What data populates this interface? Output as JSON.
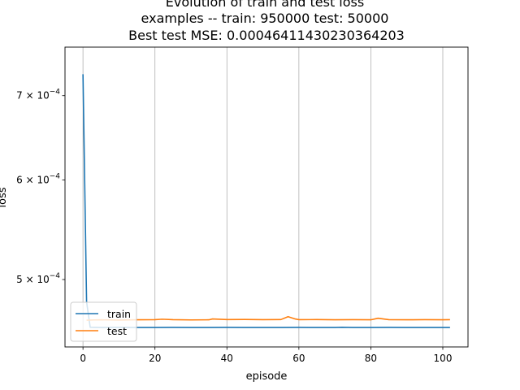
{
  "chart_data": {
    "type": "line",
    "title_lines": [
      "Evolution of train and test loss",
      "examples -- train: 950000 test: 50000",
      "Best test MSE: 0.00046411430230364203"
    ],
    "xlabel": "episode",
    "ylabel": "loss",
    "x_ticks": [
      0,
      20,
      40,
      60,
      80,
      100
    ],
    "y_scale": "log",
    "y_ticks": [
      {
        "value": 0.0005,
        "mantissa": "5",
        "base": "10",
        "exponent": "−4"
      },
      {
        "value": 0.0006,
        "mantissa": "6",
        "base": "10",
        "exponent": "−4"
      },
      {
        "value": 0.0007,
        "mantissa": "7",
        "base": "10",
        "exponent": "−4"
      }
    ],
    "xlim": [
      -5,
      107
    ],
    "ylim": [
      0.000442,
      0.000765
    ],
    "grid": "vertical lines at x ticks",
    "legend": {
      "placement": "lower-left"
    },
    "series": [
      {
        "name": "train",
        "color": "#1f77b4",
        "x": [
          0,
          1,
          2,
          5,
          10,
          15,
          20,
          25,
          30,
          35,
          40,
          45,
          50,
          55,
          60,
          65,
          70,
          72,
          75,
          80,
          85,
          90,
          95,
          100,
          102
        ],
        "y": [
          0.000728,
          0.00048,
          0.0004582,
          0.000458,
          0.0004581,
          0.000458,
          0.000458,
          0.0004581,
          0.000458,
          0.000458,
          0.0004581,
          0.000458,
          0.000458,
          0.000458,
          0.0004581,
          0.000458,
          0.000458,
          0.0004582,
          0.000458,
          0.000458,
          0.0004581,
          0.000458,
          0.000458,
          0.000458,
          0.000458
        ]
      },
      {
        "name": "test",
        "color": "#ff7f0e",
        "x": [
          1,
          3,
          5,
          10,
          15,
          20,
          22,
          25,
          30,
          35,
          36,
          40,
          45,
          50,
          55,
          57,
          59,
          60,
          65,
          70,
          75,
          80,
          82,
          85,
          90,
          95,
          100,
          102
        ],
        "y": [
          0.0004642,
          0.0004644,
          0.0004645,
          0.0004643,
          0.0004645,
          0.0004646,
          0.000465,
          0.0004646,
          0.0004644,
          0.0004645,
          0.0004652,
          0.0004647,
          0.0004648,
          0.0004646,
          0.0004647,
          0.0004672,
          0.0004652,
          0.0004646,
          0.0004647,
          0.0004645,
          0.0004646,
          0.0004645,
          0.0004658,
          0.0004646,
          0.0004645,
          0.0004646,
          0.0004645,
          0.0004646
        ]
      }
    ]
  }
}
